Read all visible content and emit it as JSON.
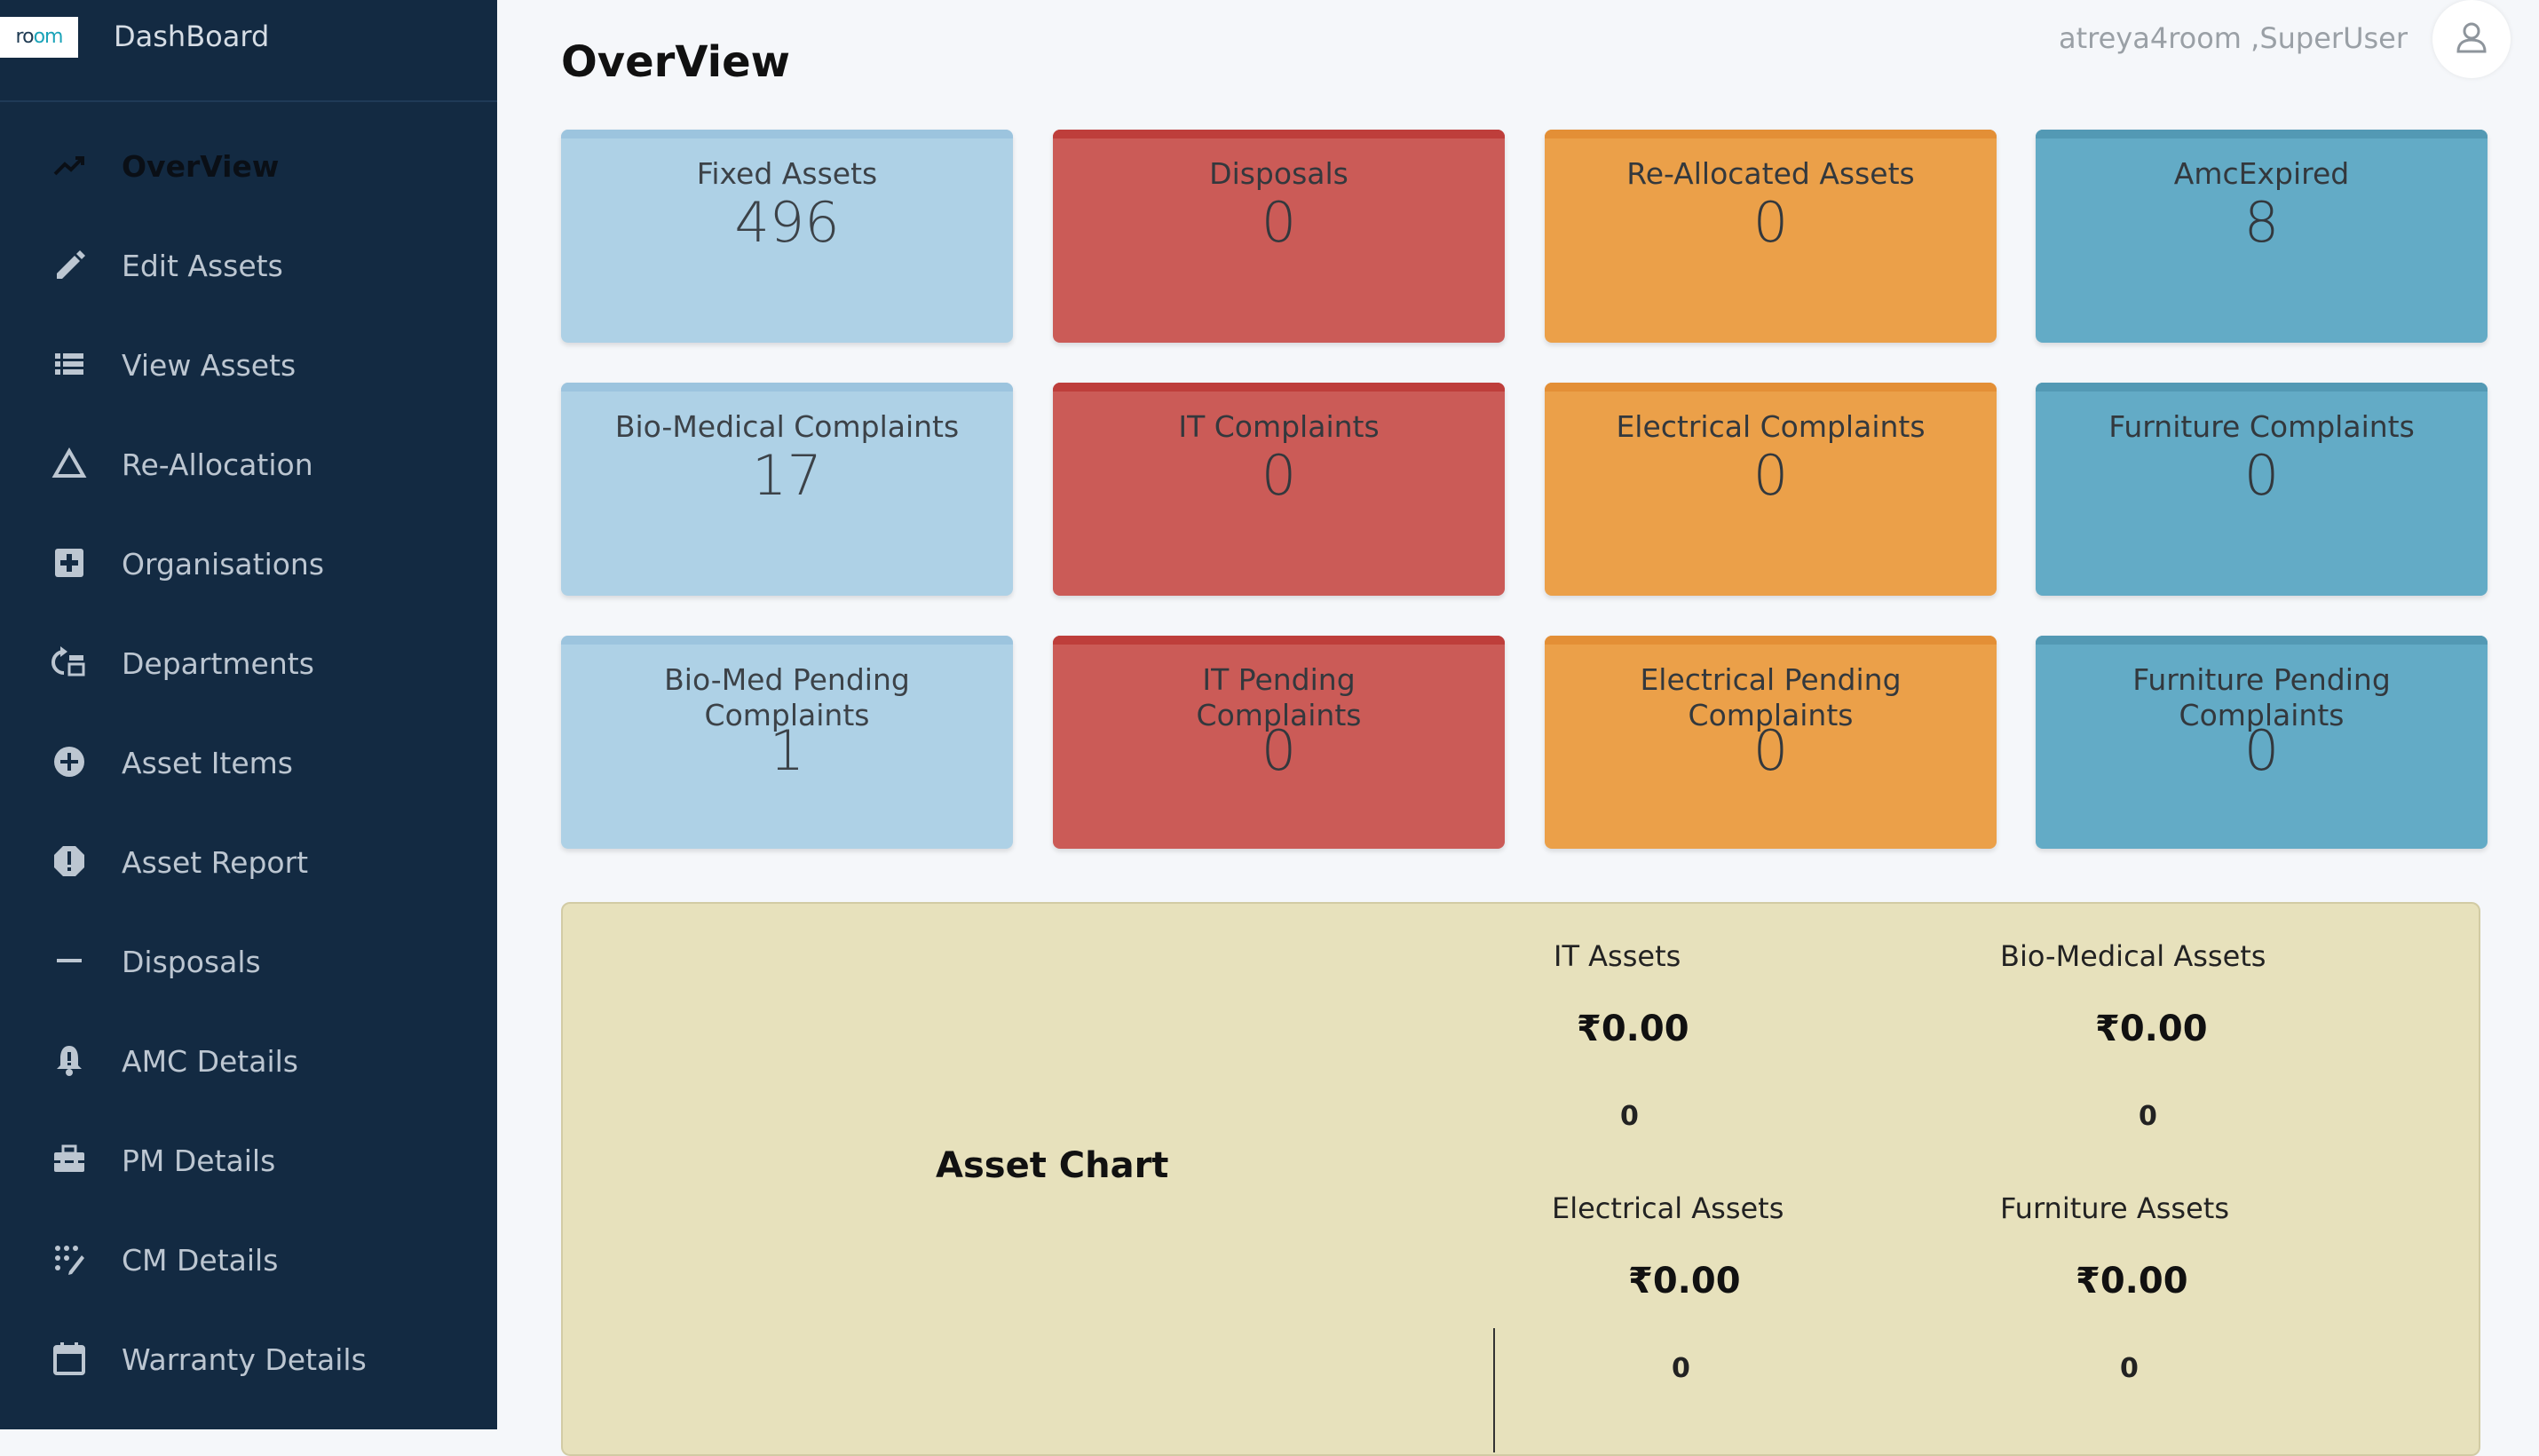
{
  "brand": {
    "logo_text_a": "ro",
    "logo_text_b": "om",
    "title": "DashBoard"
  },
  "sidebar": {
    "items": [
      {
        "label": "OverView",
        "icon": "trending-up-icon"
      },
      {
        "label": "Edit Assets",
        "icon": "pencil-icon"
      },
      {
        "label": "View Assets",
        "icon": "list-icon"
      },
      {
        "label": "Re-Allocation",
        "icon": "triangle-icon"
      },
      {
        "label": "Organisations",
        "icon": "medical-plus-icon"
      },
      {
        "label": "Departments",
        "icon": "departments-icon"
      },
      {
        "label": "Asset Items",
        "icon": "add-circle-icon"
      },
      {
        "label": "Asset Report",
        "icon": "alert-icon"
      },
      {
        "label": "Disposals",
        "icon": "minus-icon"
      },
      {
        "label": "AMC Details",
        "icon": "bell-icon"
      },
      {
        "label": "PM Details",
        "icon": "toolbox-icon"
      },
      {
        "label": "CM Details",
        "icon": "dots-grid-icon"
      },
      {
        "label": "Warranty Details",
        "icon": "calendar-icon"
      }
    ]
  },
  "header": {
    "title": "OverView",
    "user": "atreya4room ,SuperUser"
  },
  "cards": [
    {
      "title": "Fixed Assets",
      "value": "496"
    },
    {
      "title": "Disposals",
      "value": "0"
    },
    {
      "title": "Re-Allocated Assets",
      "value": "0"
    },
    {
      "title": "AmcExpired",
      "value": "8"
    },
    {
      "title": "Bio-Medical Complaints",
      "value": "17"
    },
    {
      "title": "IT Complaints",
      "value": "0"
    },
    {
      "title": "Electrical Complaints",
      "value": "0"
    },
    {
      "title": "Furniture Complaints",
      "value": "0"
    },
    {
      "title": "Bio-Med Pending Complaints",
      "value": "1"
    },
    {
      "title": "IT Pending Complaints",
      "value": "0"
    },
    {
      "title": "Electrical Pending Complaints",
      "value": "0"
    },
    {
      "title": "Furniture Pending Complaints",
      "value": "0"
    }
  ],
  "asset_chart": {
    "title": "Asset Chart",
    "stats": [
      {
        "label": "IT Assets",
        "amount": "₹0.00",
        "count": "0"
      },
      {
        "label": "Bio-Medical Assets",
        "amount": "₹0.00",
        "count": "0"
      },
      {
        "label": "Electrical Assets",
        "amount": "₹0.00",
        "count": "0"
      },
      {
        "label": "Furniture Assets",
        "amount": "₹0.00",
        "count": "0"
      }
    ]
  },
  "colors": {
    "sidebar_bg": "#132a42",
    "card_light_blue": "#aed1e6",
    "card_red": "#cb5b57",
    "card_orange": "#eba049",
    "card_teal": "#63abc6",
    "panel_bg": "#e7e1bc"
  }
}
